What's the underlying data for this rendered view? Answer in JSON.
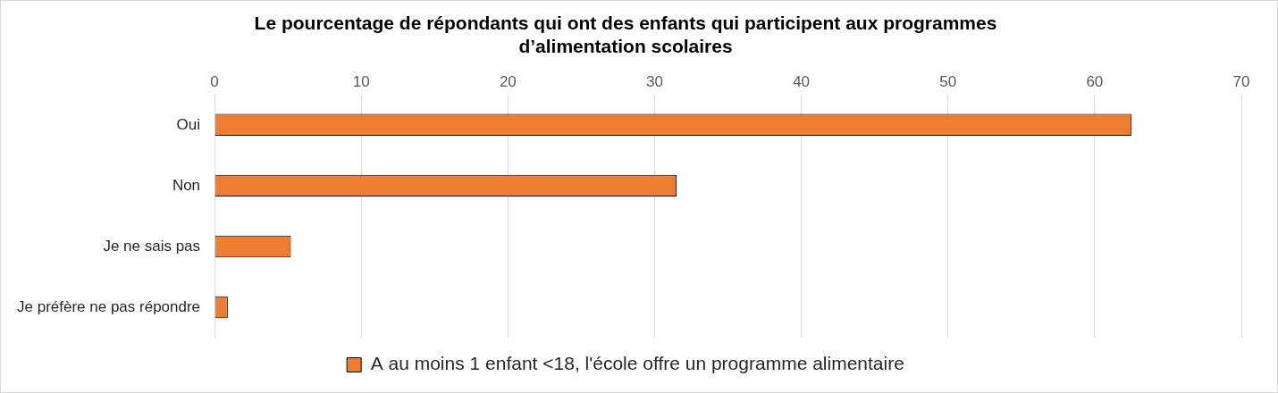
{
  "chart_data": {
    "type": "bar",
    "orientation": "horizontal",
    "title": "Le pourcentage de répondants qui ont des enfants qui participent aux programmes d’alimentation scolaires",
    "categories": [
      "Oui",
      "Non",
      "Je ne sais pas",
      "Je préfère ne pas répondre"
    ],
    "series": [
      {
        "name": "A au moins 1 enfant <18, l'école offre un programme alimentaire",
        "color": "#ed7d31",
        "values": [
          62.5,
          31.5,
          5.2,
          0.9
        ]
      }
    ],
    "xlim": [
      0,
      70
    ],
    "xticks": [
      0,
      10,
      20,
      30,
      40,
      50,
      60,
      70
    ],
    "grid": true,
    "legend": "bottom"
  }
}
